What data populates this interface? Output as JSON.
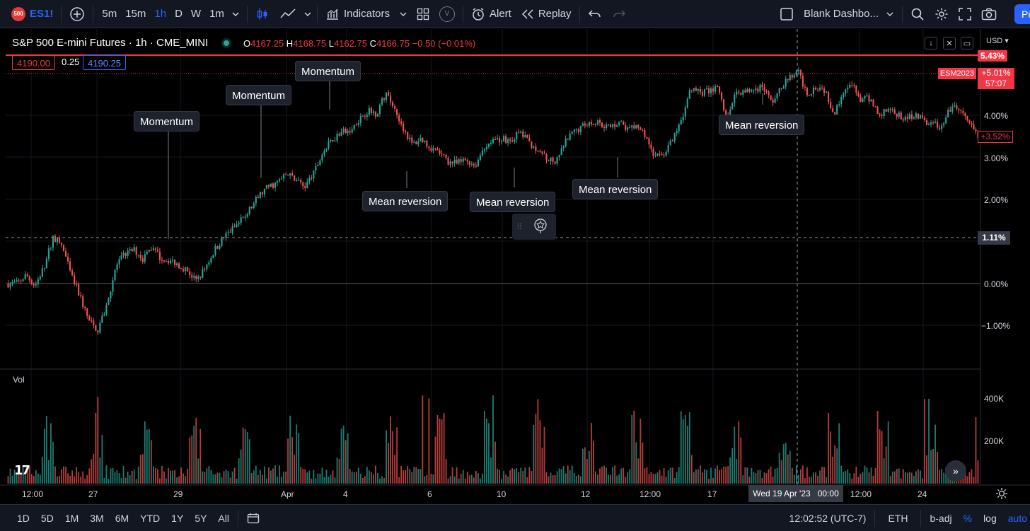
{
  "topbar": {
    "symbol_badge": "500",
    "symbol": "ES1!",
    "timeframes": [
      "5m",
      "15m",
      "1h",
      "D",
      "W",
      "1m"
    ],
    "active_timeframe": "1h",
    "indicators_label": "Indicators",
    "template_badge": "V",
    "alert_label": "Alert",
    "replay_label": "Replay",
    "layout_name": "Blank Dashbo...",
    "publish_label": "Pu"
  },
  "legend": {
    "title": "S&P 500 E-mini Futures · 1h · CME_MINI",
    "o_label": "O",
    "o_value": "4167.25",
    "h_label": "H",
    "h_value": "4168.75",
    "l_label": "L",
    "l_value": "4162.75",
    "c_label": "C",
    "c_value": "4166.75",
    "change": "−0.50 (−0.01%)",
    "bid": "4190.00",
    "spread": "0.25",
    "ask": "4190.25"
  },
  "annotations": {
    "momentum": "Momentum",
    "mean_reversion": "Mean reversion"
  },
  "price_axis": {
    "currency": "USD",
    "labels": [
      "4.00%",
      "3.00%",
      "2.00%",
      "0.00%",
      "−1.00%"
    ],
    "top_label": "5.43%",
    "contract_label": "ESM2023",
    "contract_pct": "+5.01%",
    "countdown": "57:07",
    "last_pct": "+3.52%",
    "crosshair_pct": "1.11%"
  },
  "volume": {
    "title": "Vol",
    "axis_labels": [
      "400K",
      "200K"
    ]
  },
  "time_axis": {
    "labels": [
      "12:00",
      "27",
      "29",
      "Apr",
      "4",
      "6",
      "10",
      "12",
      "12:00",
      "17",
      "12:00",
      "24"
    ],
    "crosshair_date": "Wed 19 Apr '23",
    "crosshair_time": "00:00"
  },
  "bottombar": {
    "ranges": [
      "1D",
      "5D",
      "1M",
      "3M",
      "6M",
      "YTD",
      "1Y",
      "5Y",
      "All"
    ],
    "clock": "12:02:52 (UTC-7)",
    "session": "ETH",
    "adjust": "b-adj",
    "percent": "%",
    "log": "log",
    "auto": "auto"
  },
  "colors": {
    "up": "#26a69a",
    "down": "#ef5350",
    "accent": "#2962ff",
    "red_line": "#f23645"
  },
  "chart_data": {
    "type": "candlestick",
    "title": "S&P 500 E-mini Futures · 1h · CME_MINI",
    "ylabel": "",
    "y_unit": "% change",
    "x_ticks": [
      "12:00",
      "27",
      "29",
      "Apr",
      "4",
      "6",
      "10",
      "12",
      "12:00",
      "17",
      "12:00",
      "24"
    ],
    "y_ticks": [
      "−1.00%",
      "0.00%",
      "2.00%",
      "3.00%",
      "4.00%"
    ],
    "path_pct": [
      0.0,
      0.0,
      0.2,
      -0.05,
      0.4,
      1.1,
      0.9,
      0.2,
      -0.3,
      -0.9,
      -1.1,
      -0.5,
      0.4,
      0.7,
      0.8,
      0.6,
      0.85,
      0.6,
      0.55,
      0.45,
      0.3,
      0.05,
      0.4,
      0.8,
      1.1,
      1.3,
      1.5,
      1.8,
      2.1,
      2.3,
      2.4,
      2.6,
      2.5,
      2.3,
      2.6,
      3.1,
      3.4,
      3.6,
      3.6,
      3.9,
      4.1,
      4.05,
      4.5,
      4.2,
      3.7,
      3.3,
      3.45,
      3.25,
      3.1,
      2.9,
      2.85,
      2.95,
      2.8,
      3.25,
      3.4,
      3.45,
      3.4,
      3.6,
      3.35,
      3.2,
      3.0,
      2.85,
      3.35,
      3.6,
      3.75,
      3.85,
      3.8,
      3.7,
      3.85,
      3.65,
      3.75,
      3.5,
      3.0,
      3.1,
      3.4,
      3.9,
      4.6,
      4.55,
      4.55,
      4.7,
      3.9,
      4.55,
      4.55,
      4.6,
      4.7,
      4.3,
      4.6,
      4.9,
      5.0,
      4.5,
      4.7,
      4.6,
      4.0,
      4.6,
      4.7,
      4.35,
      4.4,
      4.0,
      4.15,
      4.0,
      3.9,
      4.05,
      3.85,
      3.8,
      3.7,
      4.2,
      4.1,
      3.8,
      3.5
    ],
    "annotations": [
      {
        "label": "Momentum"
      },
      {
        "label": "Momentum"
      },
      {
        "label": "Momentum"
      },
      {
        "label": "Mean reversion"
      },
      {
        "label": "Mean reversion"
      },
      {
        "label": "Mean reversion"
      },
      {
        "label": "Mean reversion"
      }
    ],
    "volume_ylim": [
      0,
      450000
    ]
  }
}
